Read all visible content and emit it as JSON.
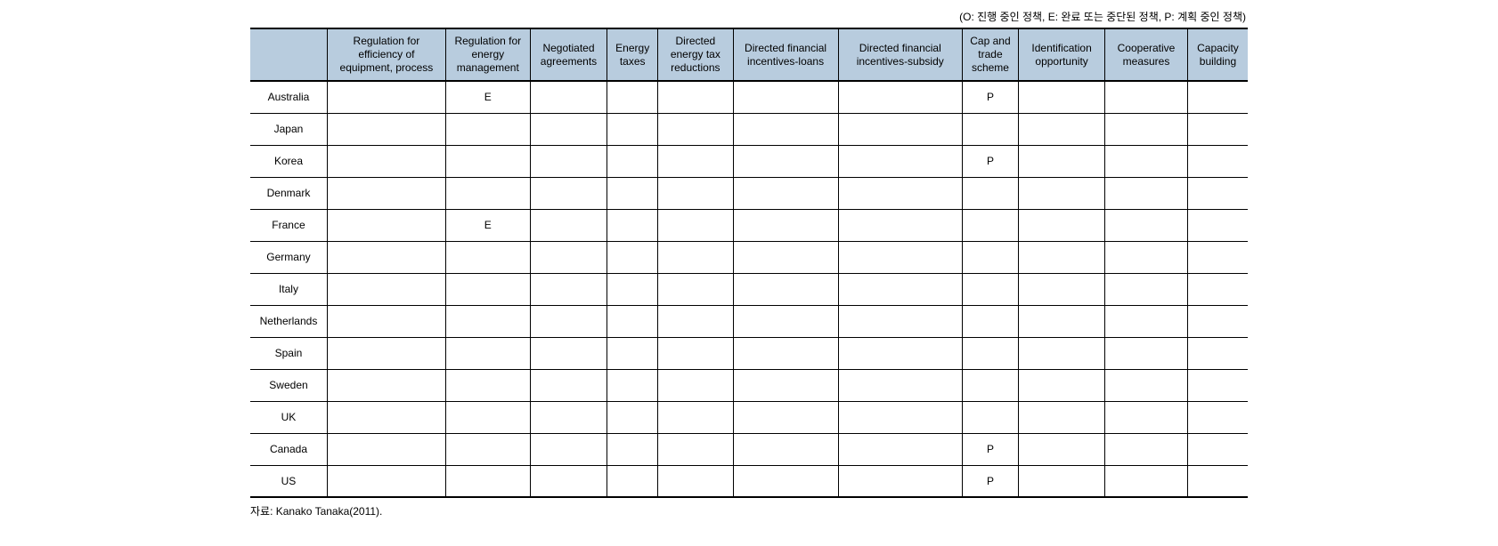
{
  "legend_text": "(O: 진행 중인 정책, E: 완료 또는 중단된 정책, P: 계획 중인 정책)",
  "table": {
    "header_bg": "#b8ccde",
    "border_color": "#000000",
    "columns": [
      "Regulation for efficiency of equipment, process",
      "Regulation for energy management",
      "Negotiated agreements",
      "Energy taxes",
      "Directed energy tax reductions",
      "Directed financial incentives-loans",
      "Directed financial incentives-subsidy",
      "Cap and trade scheme",
      "Identification opportunity",
      "Cooperative measures",
      "Capacity building"
    ],
    "rows": [
      {
        "label": "Australia",
        "cells": [
          "",
          "E",
          "",
          "",
          "",
          "",
          "",
          "P",
          "",
          "",
          ""
        ]
      },
      {
        "label": "Japan",
        "cells": [
          "",
          "",
          "",
          "",
          "",
          "",
          "",
          "",
          "",
          "",
          ""
        ]
      },
      {
        "label": "Korea",
        "cells": [
          "",
          "",
          "",
          "",
          "",
          "",
          "",
          "P",
          "",
          "",
          ""
        ]
      },
      {
        "label": "Denmark",
        "cells": [
          "",
          "",
          "",
          "",
          "",
          "",
          "",
          "",
          "",
          "",
          ""
        ]
      },
      {
        "label": "France",
        "cells": [
          "",
          "E",
          "",
          "",
          "",
          "",
          "",
          "",
          "",
          "",
          ""
        ]
      },
      {
        "label": "Germany",
        "cells": [
          "",
          "",
          "",
          "",
          "",
          "",
          "",
          "",
          "",
          "",
          ""
        ]
      },
      {
        "label": "Italy",
        "cells": [
          "",
          "",
          "",
          "",
          "",
          "",
          "",
          "",
          "",
          "",
          ""
        ]
      },
      {
        "label": "Netherlands",
        "cells": [
          "",
          "",
          "",
          "",
          "",
          "",
          "",
          "",
          "",
          "",
          ""
        ]
      },
      {
        "label": "Spain",
        "cells": [
          "",
          "",
          "",
          "",
          "",
          "",
          "",
          "",
          "",
          "",
          ""
        ]
      },
      {
        "label": "Sweden",
        "cells": [
          "",
          "",
          "",
          "",
          "",
          "",
          "",
          "",
          "",
          "",
          ""
        ]
      },
      {
        "label": "UK",
        "cells": [
          "",
          "",
          "",
          "",
          "",
          "",
          "",
          "",
          "",
          "",
          ""
        ]
      },
      {
        "label": "Canada",
        "cells": [
          "",
          "",
          "",
          "",
          "",
          "",
          "",
          "P",
          "",
          "",
          ""
        ]
      },
      {
        "label": "US",
        "cells": [
          "",
          "",
          "",
          "",
          "",
          "",
          "",
          "P",
          "",
          "",
          ""
        ]
      }
    ]
  },
  "source_text": "자료: Kanako Tanaka(2011)."
}
